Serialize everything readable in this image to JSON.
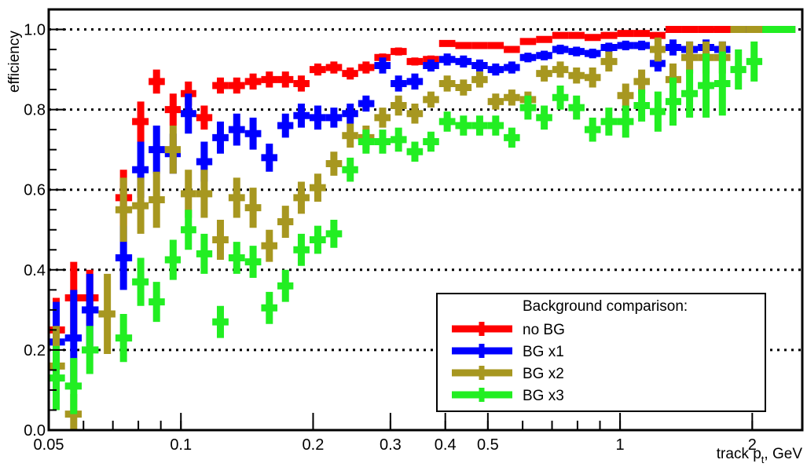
{
  "chart_data": {
    "type": "scatter",
    "title": "",
    "xlabel": "track p",
    "xlabel_sub": "t",
    "xlabel_unit": ", GeV",
    "ylabel": "efficiency",
    "xscale": "log",
    "xlim": [
      0.05,
      2.6
    ],
    "ylim": [
      0.0,
      1.05
    ],
    "x_ticks": [
      0.05,
      0.1,
      0.2,
      0.3,
      0.4,
      0.5,
      1,
      2
    ],
    "x_tick_labels": [
      "0.05",
      "0.1",
      "0.2",
      "0.3",
      "0.4",
      "0.5",
      "1",
      "2"
    ],
    "y_ticks": [
      0.0,
      0.2,
      0.4,
      0.6,
      0.8,
      1.0
    ],
    "y_tick_labels": [
      "0.0",
      "0.2",
      "0.4",
      "0.6",
      "0.8",
      "1.0"
    ],
    "grid": "horizontal dotted",
    "legend_title": "Background comparison:",
    "legend_position": "bottom-right",
    "x": [
      0.052,
      0.057,
      0.062,
      0.068,
      0.074,
      0.081,
      0.088,
      0.096,
      0.104,
      0.113,
      0.123,
      0.134,
      0.146,
      0.159,
      0.173,
      0.188,
      0.205,
      0.223,
      0.243,
      0.264,
      0.288,
      0.313,
      0.341,
      0.371,
      0.404,
      0.44,
      0.479,
      0.521,
      0.567,
      0.617,
      0.672,
      0.731,
      0.796,
      0.866,
      0.943,
      1.03,
      1.12,
      1.22,
      1.32,
      1.44,
      1.57,
      1.71,
      1.86,
      2.02,
      2.2,
      2.4
    ],
    "series": [
      {
        "name": "no BG",
        "color": "#ff0000",
        "values": [
          0.25,
          0.33,
          0.33,
          null,
          0.58,
          0.77,
          0.87,
          0.8,
          0.84,
          0.78,
          0.86,
          0.86,
          0.87,
          0.875,
          0.875,
          0.865,
          0.9,
          0.905,
          0.89,
          0.905,
          0.93,
          0.945,
          0.92,
          0.925,
          0.965,
          0.96,
          0.96,
          0.96,
          0.95,
          0.97,
          0.975,
          0.985,
          0.985,
          0.98,
          0.985,
          0.99,
          0.99,
          0.985,
          1.0,
          1.0,
          1.0,
          1.0,
          1.0,
          1.0,
          1.0,
          1.0
        ],
        "errors": [
          0.08,
          0.09,
          0.07,
          0,
          0.07,
          0.05,
          0.03,
          0.04,
          0.03,
          0.03,
          0.02,
          0.02,
          0.02,
          0.02,
          0.02,
          0.02,
          0.015,
          0.015,
          0.015,
          0.015,
          0.01,
          0.01,
          0.01,
          0.01,
          0.008,
          0.008,
          0.008,
          0.008,
          0.008,
          0.006,
          0.006,
          0.005,
          0.005,
          0.005,
          0.005,
          0.004,
          0.004,
          0.004,
          0.003,
          0.003,
          0.003,
          0.003,
          0.003,
          0.003,
          0.003,
          0.003
        ]
      },
      {
        "name": "BG x1",
        "color": "#0000ff",
        "values": [
          0.22,
          0.23,
          0.3,
          null,
          0.43,
          0.65,
          0.7,
          0.69,
          0.79,
          0.67,
          0.73,
          0.75,
          0.74,
          0.68,
          0.76,
          0.785,
          0.78,
          0.78,
          0.79,
          0.815,
          0.91,
          0.865,
          0.87,
          0.91,
          0.925,
          0.92,
          0.91,
          0.9,
          0.905,
          0.93,
          0.935,
          0.95,
          0.945,
          0.94,
          0.955,
          0.96,
          0.96,
          0.915,
          0.955,
          0.95,
          0.955,
          0.95,
          1.0,
          1.0,
          1.0,
          1.0
        ],
        "errors": [
          0.1,
          0.12,
          0.09,
          0,
          0.08,
          0.07,
          0.06,
          0.05,
          0.05,
          0.05,
          0.04,
          0.04,
          0.04,
          0.035,
          0.03,
          0.03,
          0.03,
          0.025,
          0.025,
          0.02,
          0.02,
          0.02,
          0.02,
          0.015,
          0.015,
          0.015,
          0.015,
          0.015,
          0.015,
          0.012,
          0.012,
          0.012,
          0.012,
          0.012,
          0.012,
          0.012,
          0.012,
          0.02,
          0.02,
          0.02,
          0.02,
          0.02,
          0.005,
          0.005,
          0.005,
          0.005
        ]
      },
      {
        "name": "BG x2",
        "color": "#a79720",
        "values": [
          0.16,
          0.04,
          null,
          0.29,
          0.55,
          0.56,
          0.575,
          0.7,
          0.59,
          0.59,
          0.475,
          0.58,
          0.555,
          0.46,
          0.52,
          0.58,
          0.605,
          0.665,
          0.735,
          0.73,
          0.78,
          0.81,
          0.79,
          0.825,
          0.865,
          0.855,
          0.875,
          0.82,
          0.83,
          0.825,
          0.89,
          0.9,
          0.885,
          0.88,
          0.92,
          0.835,
          0.87,
          0.95,
          0.875,
          0.93,
          0.93,
          0.93,
          1.0,
          1.0,
          1.0,
          1.0
        ],
        "errors": [
          0.1,
          0.05,
          0,
          0.1,
          0.08,
          0.07,
          0.07,
          0.06,
          0.06,
          0.06,
          0.05,
          0.05,
          0.05,
          0.04,
          0.04,
          0.04,
          0.035,
          0.03,
          0.03,
          0.03,
          0.025,
          0.025,
          0.025,
          0.02,
          0.02,
          0.02,
          0.02,
          0.02,
          0.02,
          0.02,
          0.02,
          0.02,
          0.02,
          0.025,
          0.025,
          0.03,
          0.03,
          0.03,
          0.04,
          0.04,
          0.04,
          0.04,
          0.005,
          0.005,
          0.005,
          0.005
        ]
      },
      {
        "name": "BG x3",
        "color": "#22ee22",
        "values": [
          0.13,
          0.11,
          0.2,
          null,
          0.23,
          0.37,
          0.32,
          0.425,
          0.5,
          0.44,
          0.27,
          0.43,
          0.42,
          0.305,
          0.36,
          0.45,
          0.475,
          0.49,
          0.65,
          0.72,
          0.72,
          0.725,
          0.695,
          0.72,
          0.77,
          0.76,
          0.76,
          0.76,
          0.73,
          0.805,
          0.78,
          0.83,
          0.805,
          0.75,
          0.77,
          0.77,
          0.81,
          0.795,
          0.82,
          0.84,
          0.86,
          0.865,
          0.9,
          0.92,
          1.0,
          1.0
        ],
        "errors": [
          0.08,
          0.07,
          0.06,
          0,
          0.06,
          0.06,
          0.05,
          0.05,
          0.05,
          0.05,
          0.04,
          0.04,
          0.04,
          0.04,
          0.04,
          0.04,
          0.035,
          0.035,
          0.03,
          0.03,
          0.03,
          0.03,
          0.025,
          0.025,
          0.025,
          0.025,
          0.025,
          0.025,
          0.025,
          0.03,
          0.03,
          0.03,
          0.03,
          0.03,
          0.035,
          0.04,
          0.04,
          0.05,
          0.06,
          0.06,
          0.08,
          0.08,
          0.05,
          0.05,
          0.005,
          0.005
        ]
      }
    ]
  }
}
